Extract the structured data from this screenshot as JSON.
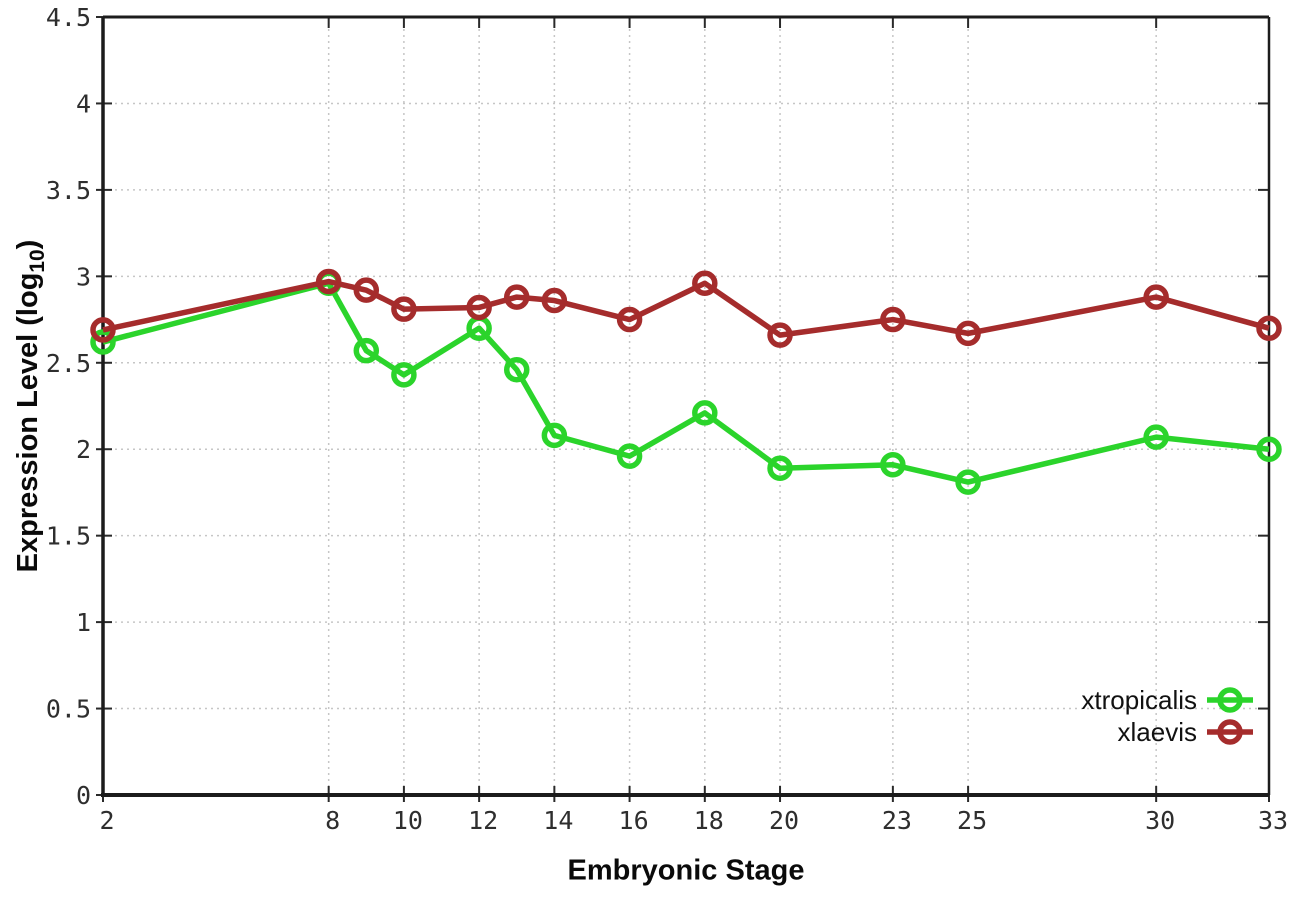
{
  "chart_data": {
    "type": "line",
    "title": "",
    "xlabel": "Embryonic Stage",
    "ylabel_prefix": "Expression Level (log",
    "ylabel_sub": "10",
    "ylabel_suffix": ")",
    "x": [
      2,
      8,
      9,
      10,
      12,
      13,
      14,
      16,
      18,
      20,
      23,
      25,
      30,
      33
    ],
    "xticks": [
      2,
      8,
      10,
      12,
      14,
      16,
      18,
      20,
      23,
      25,
      30,
      33
    ],
    "yticks": [
      0,
      0.5,
      1,
      1.5,
      2,
      2.5,
      3,
      3.5,
      4,
      4.5
    ],
    "xlim": [
      2,
      33
    ],
    "ylim": [
      0,
      4.5
    ],
    "grid": true,
    "legend_position": "bottom-right",
    "marker": "open-circle",
    "background_color": "#ffffff",
    "grid_color": "#c6c6c6",
    "series": [
      {
        "name": "xtropicalis",
        "color": "#2bd42b",
        "values": [
          2.62,
          2.96,
          2.57,
          2.43,
          2.7,
          2.46,
          2.08,
          1.96,
          2.21,
          1.89,
          1.91,
          1.81,
          2.07,
          2.0
        ]
      },
      {
        "name": "xlaevis",
        "color": "#a52c2c",
        "values": [
          2.69,
          2.97,
          2.92,
          2.81,
          2.82,
          2.88,
          2.86,
          2.75,
          2.96,
          2.66,
          2.75,
          2.67,
          2.88,
          2.7
        ]
      }
    ]
  }
}
